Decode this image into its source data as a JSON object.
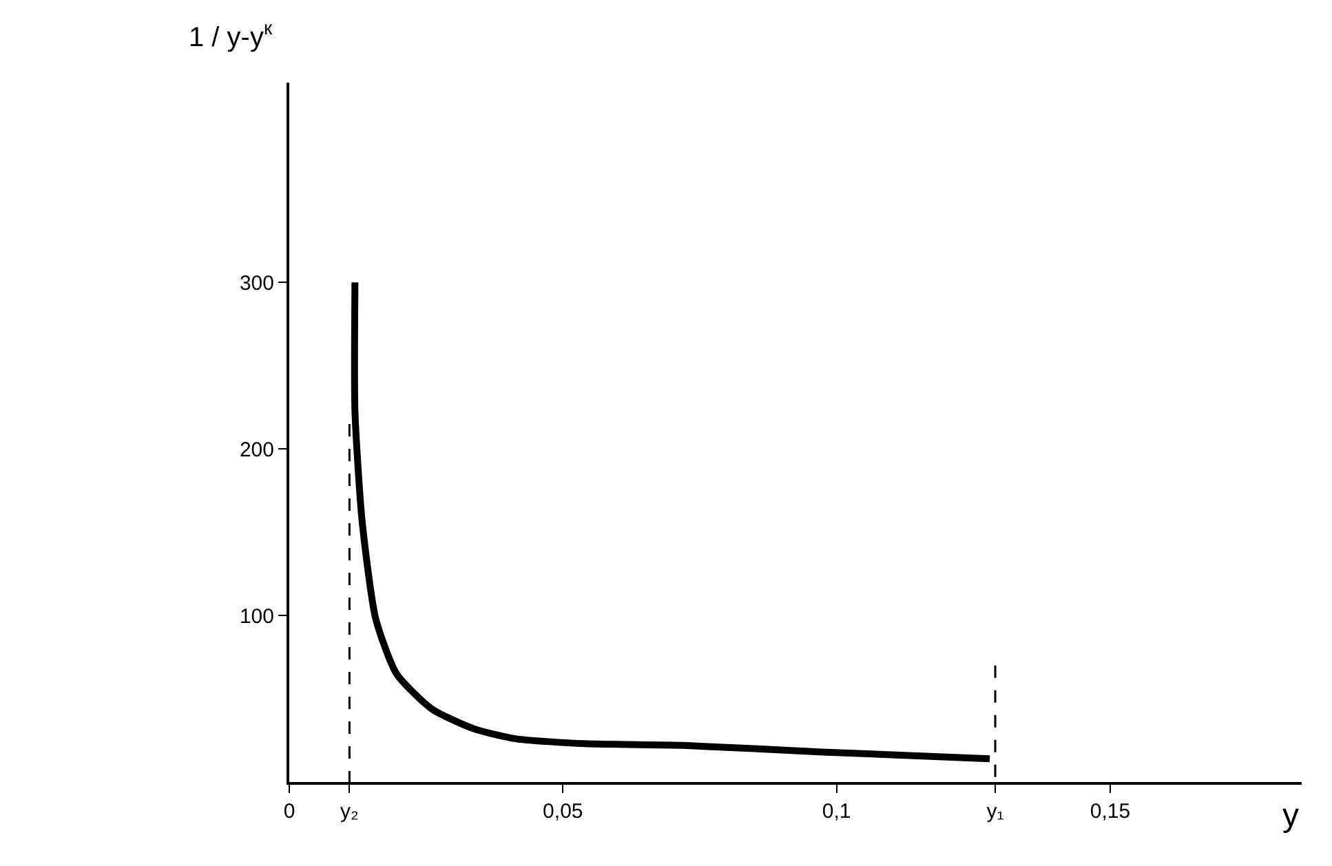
{
  "chart_data": {
    "type": "line",
    "xlabel": "y",
    "ylabel": "1 / y-y$^{к}$",
    "xlim": [
      0,
      0.185
    ],
    "ylim": [
      0,
      420
    ],
    "xticks": [
      {
        "value": 0,
        "label": "0"
      },
      {
        "value": 0.011,
        "label": "y₂"
      },
      {
        "value": 0.05,
        "label": "0,05"
      },
      {
        "value": 0.1,
        "label": "0,1"
      },
      {
        "value": 0.129,
        "label": "y₁"
      },
      {
        "value": 0.15,
        "label": "0,15"
      }
    ],
    "yticks": [
      100,
      200,
      300
    ],
    "marker": "none",
    "series": [
      {
        "color": "#000000",
        "x": [
          0.012,
          0.012,
          0.0133,
          0.0158,
          0.0196,
          0.026,
          0.0337,
          0.0413,
          0.054,
          0.072,
          0.0974,
          0.128
        ],
        "values": [
          300,
          223,
          157,
          98,
          65,
          44,
          32,
          26,
          23,
          22,
          18,
          14
        ],
        "line_style": "solid"
      },
      {
        "color": "#000000",
        "x": [
          0.011,
          0.011
        ],
        "values": [
          215,
          0
        ],
        "line_style": "dashed"
      },
      {
        "color": "#000000",
        "x": [
          0.129,
          0.129
        ],
        "values": [
          70,
          0
        ],
        "line_style": "dashed"
      }
    ]
  }
}
